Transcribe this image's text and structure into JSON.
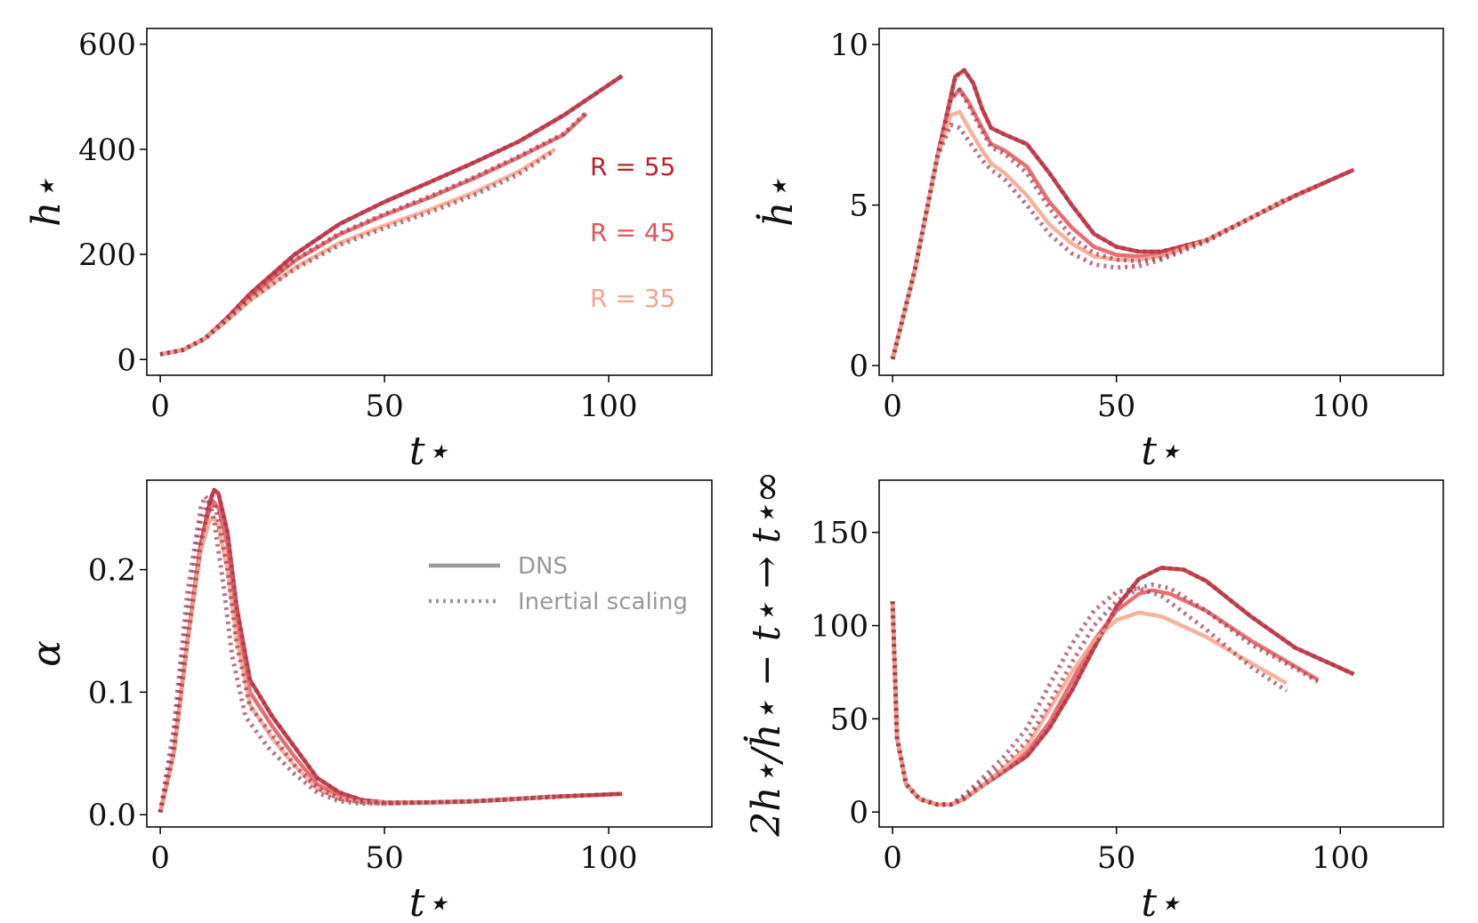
{
  "figure": {
    "colors": {
      "R55": "#c0202a",
      "R45": "#e0575a",
      "R35": "#f4a48c",
      "inertial": "#9e3b52",
      "legend": "#999999"
    }
  },
  "chart_data": [
    {
      "type": "line",
      "ylabel": "h⋆",
      "xlabel": "t⋆",
      "xlim": [
        -3,
        123
      ],
      "ylim": [
        -30,
        630
      ],
      "xticks": [
        "0",
        "50",
        "100"
      ],
      "yticks": [
        "0",
        "200",
        "400",
        "600"
      ],
      "annotations": [
        {
          "text": "R = 55",
          "color": "#c0202a"
        },
        {
          "text": "R = 45",
          "color": "#e0575a"
        },
        {
          "text": "R = 35",
          "color": "#f4a48c"
        }
      ],
      "series": [
        {
          "style": "DNS",
          "group": "R55",
          "x": [
            0,
            5,
            10,
            15,
            20,
            30,
            40,
            50,
            60,
            70,
            80,
            90,
            103
          ],
          "y": [
            10,
            18,
            40,
            80,
            125,
            200,
            258,
            300,
            337,
            375,
            415,
            465,
            540
          ]
        },
        {
          "style": "DNS",
          "group": "R45",
          "x": [
            0,
            5,
            10,
            15,
            20,
            30,
            40,
            50,
            60,
            70,
            80,
            90,
            95
          ],
          "y": [
            10,
            18,
            40,
            78,
            120,
            188,
            238,
            275,
            308,
            345,
            385,
            428,
            468
          ]
        },
        {
          "style": "DNS",
          "group": "R35",
          "x": [
            0,
            5,
            10,
            15,
            20,
            30,
            40,
            50,
            60,
            70,
            80,
            88
          ],
          "y": [
            10,
            18,
            40,
            75,
            112,
            175,
            222,
            255,
            285,
            318,
            358,
            400
          ]
        },
        {
          "style": "Inertial scaling",
          "group": "R55",
          "x": [
            0,
            5,
            10,
            15,
            20,
            30,
            40,
            50,
            60,
            70,
            80,
            90,
            103
          ],
          "y": [
            10,
            18,
            40,
            80,
            125,
            200,
            258,
            300,
            337,
            375,
            415,
            465,
            540
          ]
        },
        {
          "style": "Inertial scaling",
          "group": "R45",
          "x": [
            0,
            5,
            10,
            15,
            20,
            30,
            40,
            50,
            60,
            70,
            80,
            90,
            95
          ],
          "y": [
            10,
            18,
            40,
            78,
            122,
            190,
            240,
            277,
            310,
            347,
            387,
            430,
            470
          ]
        },
        {
          "style": "Inertial scaling",
          "group": "R35",
          "x": [
            0,
            5,
            10,
            15,
            20,
            30,
            40,
            50,
            60,
            70,
            80,
            88
          ],
          "y": [
            10,
            18,
            40,
            76,
            114,
            172,
            218,
            250,
            280,
            313,
            353,
            398
          ]
        }
      ]
    },
    {
      "type": "line",
      "ylabel": "ḣ⋆",
      "xlabel": "t⋆",
      "xlim": [
        -3,
        123
      ],
      "ylim": [
        -0.3,
        10.5
      ],
      "xticks": [
        "0",
        "50",
        "100"
      ],
      "yticks": [
        "0",
        "5",
        "10"
      ],
      "series": [
        {
          "style": "DNS",
          "group": "R55",
          "x": [
            0,
            5,
            10,
            14,
            16,
            18,
            20,
            22,
            25,
            30,
            35,
            40,
            45,
            50,
            55,
            60,
            70,
            80,
            90,
            103
          ],
          "y": [
            0.2,
            3,
            6.5,
            9,
            9.2,
            8.8,
            8,
            7.4,
            7.2,
            6.9,
            6,
            5,
            4.1,
            3.7,
            3.55,
            3.55,
            3.9,
            4.6,
            5.3,
            6.1
          ]
        },
        {
          "style": "DNS",
          "group": "R45",
          "x": [
            0,
            5,
            10,
            13,
            15,
            17,
            20,
            22,
            25,
            30,
            35,
            40,
            45,
            50,
            55,
            60,
            70,
            80,
            90,
            95
          ],
          "y": [
            0.2,
            3,
            6.5,
            8.3,
            8.6,
            8.2,
            7.4,
            6.9,
            6.7,
            6.2,
            5.1,
            4.3,
            3.7,
            3.45,
            3.4,
            3.45,
            3.9,
            4.6,
            5.3,
            5.6
          ]
        },
        {
          "style": "DNS",
          "group": "R35",
          "x": [
            0,
            5,
            10,
            13,
            15,
            17,
            20,
            22,
            25,
            30,
            35,
            40,
            45,
            50,
            55,
            60,
            70,
            80,
            88
          ],
          "y": [
            0.2,
            3,
            6.5,
            7.8,
            7.9,
            7.4,
            6.7,
            6.3,
            6,
            5.3,
            4.4,
            3.8,
            3.4,
            3.3,
            3.3,
            3.4,
            3.9,
            4.6,
            5.2
          ]
        },
        {
          "style": "Inertial scaling",
          "group": "R55",
          "x": [
            0,
            5,
            10,
            14,
            16,
            18,
            20,
            22,
            25,
            30,
            35,
            40,
            45,
            50,
            55,
            60,
            70,
            80,
            90,
            103
          ],
          "y": [
            0.2,
            3,
            6.5,
            9,
            9.2,
            8.8,
            8,
            7.4,
            7.2,
            6.9,
            6,
            5,
            4.1,
            3.7,
            3.55,
            3.55,
            3.9,
            4.6,
            5.3,
            6.1
          ]
        },
        {
          "style": "Inertial scaling",
          "group": "R45",
          "x": [
            0,
            5,
            10,
            13,
            15,
            17,
            20,
            22,
            25,
            30,
            35,
            40,
            45,
            50,
            55,
            60,
            70,
            80,
            90,
            95
          ],
          "y": [
            0.2,
            3,
            6.5,
            8.3,
            8.6,
            8.1,
            7.3,
            6.8,
            6.6,
            6,
            4.9,
            4,
            3.5,
            3.3,
            3.25,
            3.35,
            3.9,
            4.6,
            5.3,
            5.6
          ]
        },
        {
          "style": "Inertial scaling",
          "group": "R35",
          "x": [
            0,
            5,
            10,
            13,
            15,
            17,
            20,
            22,
            25,
            30,
            35,
            40,
            45,
            50,
            55,
            60,
            70,
            80,
            88
          ],
          "y": [
            0.2,
            3,
            6.5,
            7.5,
            7.4,
            7,
            6.4,
            6.1,
            5.8,
            5,
            4.1,
            3.5,
            3.15,
            3.05,
            3.1,
            3.3,
            3.85,
            4.6,
            5.2
          ]
        }
      ]
    },
    {
      "type": "line",
      "ylabel": "α",
      "xlabel": "t⋆",
      "xlim": [
        -3,
        123
      ],
      "ylim": [
        -0.01,
        0.273
      ],
      "xticks": [
        "0",
        "50",
        "100"
      ],
      "yticks": [
        "0.0",
        "0.1",
        "0.2"
      ],
      "legend": {
        "placement": "center-right",
        "entries": [
          "DNS",
          "Inertial scaling"
        ]
      },
      "series": [
        {
          "style": "DNS",
          "group": "R55",
          "x": [
            0,
            3,
            6,
            9,
            11,
            12,
            13,
            15,
            17,
            20,
            25,
            30,
            35,
            40,
            45,
            50,
            60,
            70,
            80,
            90,
            103
          ],
          "y": [
            0.002,
            0.05,
            0.14,
            0.22,
            0.255,
            0.265,
            0.262,
            0.23,
            0.17,
            0.11,
            0.08,
            0.055,
            0.03,
            0.018,
            0.012,
            0.01,
            0.01,
            0.011,
            0.013,
            0.015,
            0.017
          ]
        },
        {
          "style": "DNS",
          "group": "R45",
          "x": [
            0,
            3,
            6,
            9,
            11,
            12,
            13,
            15,
            17,
            20,
            25,
            30,
            35,
            40,
            45,
            50,
            60,
            70,
            80,
            90,
            95
          ],
          "y": [
            0.002,
            0.05,
            0.14,
            0.22,
            0.25,
            0.255,
            0.25,
            0.22,
            0.16,
            0.1,
            0.072,
            0.047,
            0.025,
            0.015,
            0.011,
            0.01,
            0.01,
            0.011,
            0.013,
            0.015,
            0.016
          ]
        },
        {
          "style": "DNS",
          "group": "R35",
          "x": [
            0,
            3,
            6,
            9,
            11,
            12,
            13,
            15,
            17,
            20,
            25,
            30,
            35,
            40,
            45,
            50,
            60,
            70,
            80,
            88
          ],
          "y": [
            0.002,
            0.05,
            0.14,
            0.215,
            0.24,
            0.242,
            0.235,
            0.2,
            0.145,
            0.09,
            0.062,
            0.04,
            0.021,
            0.013,
            0.01,
            0.01,
            0.01,
            0.011,
            0.013,
            0.015
          ]
        },
        {
          "style": "Inertial scaling",
          "group": "R55",
          "x": [
            0,
            3,
            6,
            9,
            11,
            12,
            13,
            15,
            17,
            20,
            25,
            30,
            35,
            40,
            45,
            50,
            60,
            70,
            80,
            90,
            103
          ],
          "y": [
            0.002,
            0.05,
            0.14,
            0.22,
            0.255,
            0.265,
            0.262,
            0.23,
            0.17,
            0.11,
            0.08,
            0.055,
            0.03,
            0.018,
            0.012,
            0.01,
            0.01,
            0.011,
            0.013,
            0.015,
            0.017
          ]
        },
        {
          "style": "Inertial scaling",
          "group": "R45",
          "x": [
            0,
            3,
            6,
            9,
            11,
            12,
            13,
            15,
            17,
            20,
            25,
            30,
            35,
            40,
            45,
            50,
            60,
            70,
            80,
            90,
            95
          ],
          "y": [
            0.002,
            0.06,
            0.16,
            0.24,
            0.258,
            0.255,
            0.24,
            0.2,
            0.14,
            0.088,
            0.065,
            0.04,
            0.022,
            0.013,
            0.01,
            0.009,
            0.01,
            0.011,
            0.013,
            0.015,
            0.016
          ]
        },
        {
          "style": "Inertial scaling",
          "group": "R35",
          "x": [
            0,
            3,
            6,
            9,
            10,
            11,
            12,
            14,
            16,
            19,
            24,
            30,
            35,
            40,
            45,
            50,
            60,
            70,
            80,
            88
          ],
          "y": [
            0.002,
            0.07,
            0.18,
            0.25,
            0.26,
            0.255,
            0.24,
            0.19,
            0.13,
            0.08,
            0.055,
            0.033,
            0.018,
            0.011,
            0.009,
            0.009,
            0.01,
            0.011,
            0.013,
            0.015
          ]
        }
      ]
    },
    {
      "type": "line",
      "ylabel": "2h⋆/ḣ⋆ − t⋆ → t⋆∞",
      "xlabel": "t⋆",
      "xlim": [
        -3,
        123
      ],
      "ylim": [
        -8,
        178
      ],
      "xticks": [
        "0",
        "50",
        "100"
      ],
      "yticks": [
        "0",
        "50",
        "100",
        "150"
      ],
      "series": [
        {
          "style": "DNS",
          "group": "R55",
          "x": [
            0,
            1,
            3,
            6,
            10,
            13,
            16,
            20,
            25,
            30,
            35,
            40,
            45,
            50,
            55,
            60,
            65,
            70,
            80,
            90,
            103
          ],
          "y": [
            113,
            40,
            15,
            7,
            4,
            4,
            7,
            14,
            22,
            30,
            45,
            65,
            88,
            110,
            125,
            131,
            130,
            124,
            105,
            88,
            74
          ]
        },
        {
          "style": "DNS",
          "group": "R45",
          "x": [
            0,
            1,
            3,
            6,
            10,
            13,
            16,
            20,
            25,
            30,
            35,
            40,
            45,
            50,
            55,
            58,
            62,
            70,
            80,
            90,
            95
          ],
          "y": [
            113,
            40,
            15,
            7,
            4,
            4,
            7,
            14,
            22,
            32,
            48,
            70,
            92,
            108,
            117,
            119,
            117,
            108,
            92,
            78,
            71
          ]
        },
        {
          "style": "DNS",
          "group": "R35",
          "x": [
            0,
            1,
            3,
            6,
            10,
            13,
            16,
            20,
            25,
            30,
            35,
            40,
            45,
            50,
            55,
            60,
            70,
            80,
            88
          ],
          "y": [
            113,
            40,
            15,
            7,
            4,
            4,
            7,
            14,
            24,
            35,
            55,
            75,
            92,
            103,
            107,
            105,
            94,
            80,
            69
          ]
        },
        {
          "style": "Inertial scaling",
          "group": "R55",
          "x": [
            0,
            1,
            3,
            6,
            10,
            13,
            16,
            20,
            25,
            30,
            35,
            40,
            45,
            50,
            55,
            60,
            65,
            70,
            80,
            90,
            103
          ],
          "y": [
            113,
            40,
            15,
            7,
            4,
            4,
            7,
            14,
            22,
            30,
            45,
            65,
            88,
            110,
            125,
            131,
            130,
            124,
            105,
            88,
            74
          ]
        },
        {
          "style": "Inertial scaling",
          "group": "R45",
          "x": [
            0,
            1,
            3,
            6,
            10,
            13,
            16,
            20,
            25,
            30,
            35,
            40,
            45,
            50,
            55,
            58,
            62,
            70,
            80,
            90,
            95
          ],
          "y": [
            113,
            40,
            15,
            7,
            4,
            4,
            8,
            16,
            26,
            38,
            58,
            80,
            100,
            113,
            120,
            122,
            120,
            108,
            90,
            77,
            70
          ]
        },
        {
          "style": "Inertial scaling",
          "group": "R35",
          "x": [
            0,
            1,
            3,
            6,
            10,
            13,
            16,
            20,
            25,
            30,
            35,
            40,
            45,
            50,
            55,
            60,
            70,
            80,
            88
          ],
          "y": [
            113,
            40,
            15,
            7,
            4,
            4,
            9,
            18,
            30,
            45,
            68,
            90,
            108,
            118,
            120,
            116,
            98,
            78,
            65
          ]
        }
      ]
    }
  ]
}
